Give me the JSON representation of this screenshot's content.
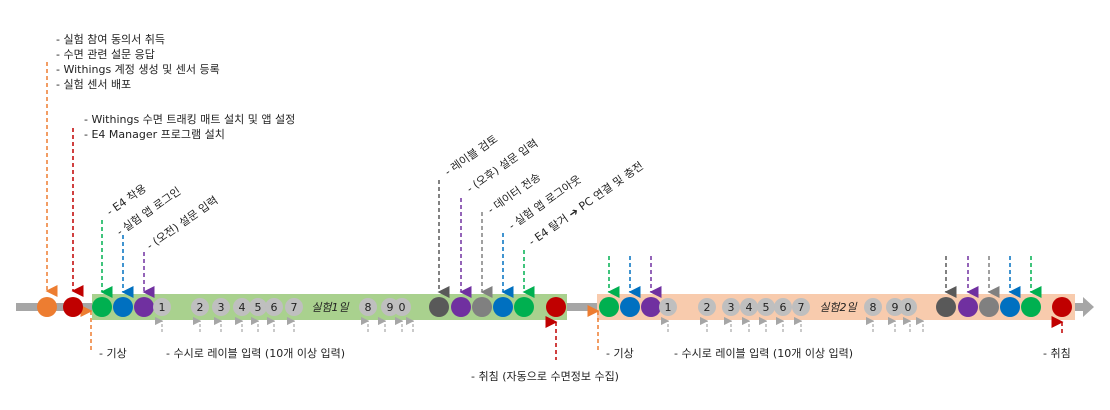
{
  "colors": {
    "timeline": "#a6a6a6",
    "day1_fill": "#a9d18e",
    "day2_fill": "#f8cbad",
    "orange": "#ed7d31",
    "red": "#c00000",
    "green": "#00b050",
    "blue": "#0070c0",
    "purple": "#7030a0",
    "dark_gray": "#595959",
    "gray": "#808080",
    "label_circle": "#bfbfbf"
  },
  "pre_setup": {
    "lines": [
      "- 실험 참여 동의서 취득",
      "- 수면 관련 설문 응답",
      "- Withings 계정 생성 및 센서 등록",
      "- 실험 센서 배포"
    ]
  },
  "evening_setup": {
    "lines": [
      "- Withings 수면 트래킹 매트 설치 및 앱 설정",
      "- E4 Manager 프로그램 설치"
    ]
  },
  "morning_steps": [
    "- E4 착용",
    "- 실험 앱 로그인",
    "- (오전) 설문 입력"
  ],
  "evening_steps": [
    "- 레이블 검토",
    "- (오후) 설문 입력",
    "- 데이터 전송",
    "- 실험 앱 로그아웃",
    "- E4 탈거 ➔ PC 연결 및 충전"
  ],
  "day1": {
    "title": "실험1일",
    "wake_label": "- 기상",
    "labels_text": "- 수시로 레이블 입력 (10개 이상 입력)",
    "label_numbers": [
      "1",
      "2",
      "3",
      "4",
      "5",
      "6",
      "7",
      "8",
      "9",
      "0"
    ],
    "sleep_label": "- 취침 (자동으로 수면정보 수집)"
  },
  "day2": {
    "title": "실험2일",
    "wake_label": "- 기상",
    "labels_text": "- 수시로 레이블 입력 (10개 이상 입력)",
    "label_numbers": [
      "1",
      "2",
      "3",
      "4",
      "5",
      "6",
      "7",
      "8",
      "9",
      "0"
    ],
    "sleep_label": "- 취침"
  }
}
